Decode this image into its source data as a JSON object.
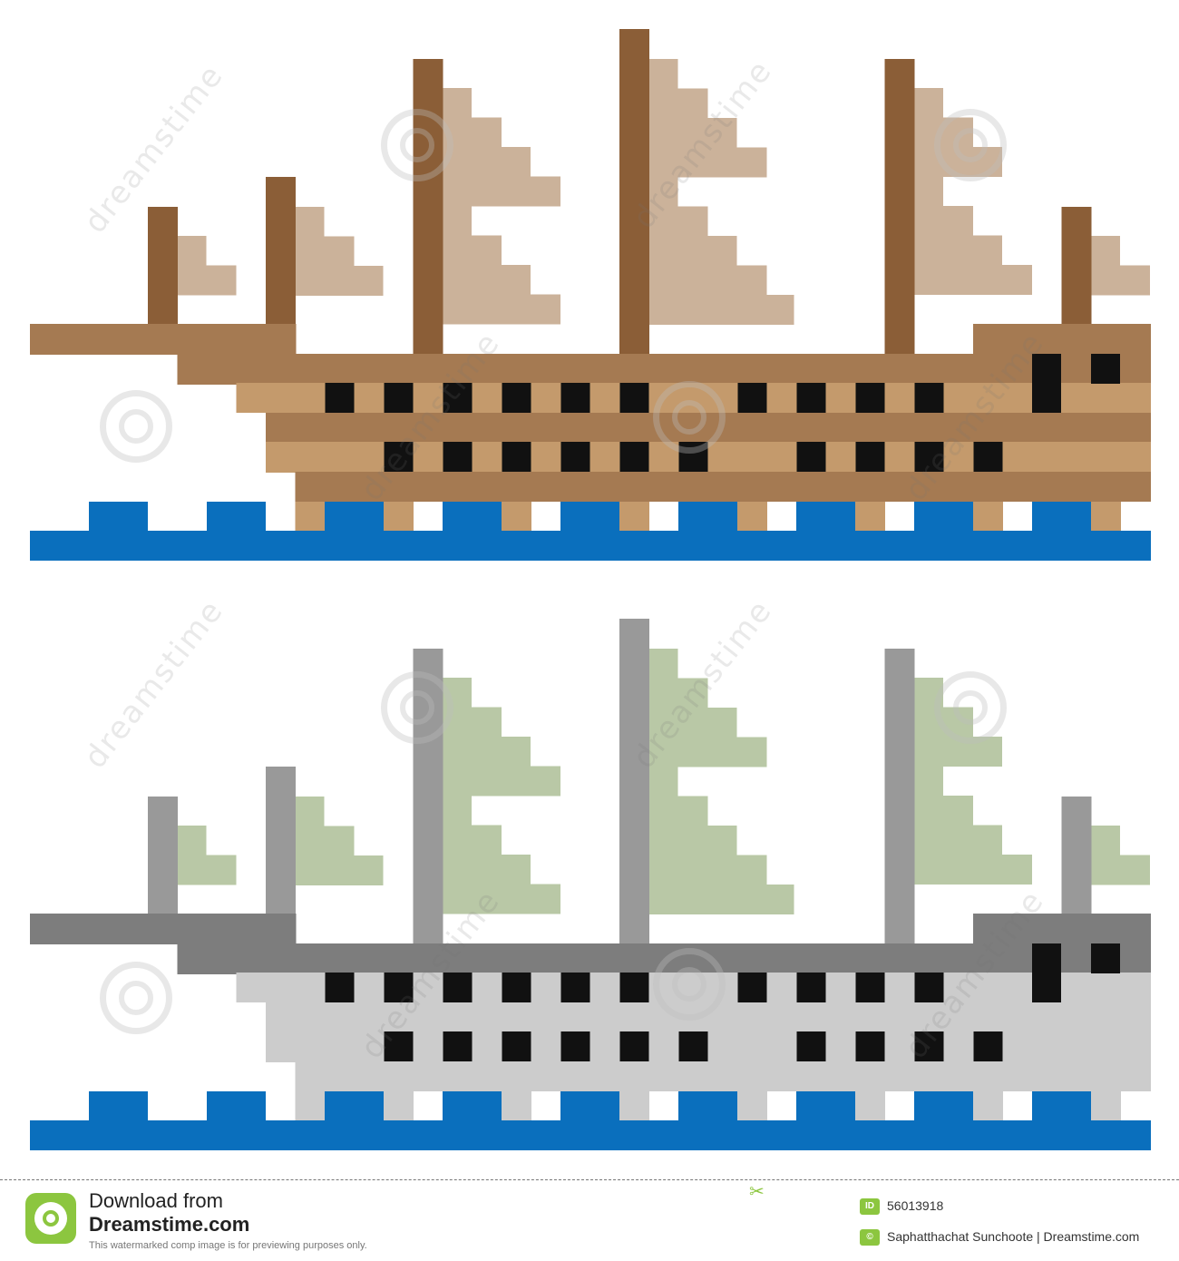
{
  "colors": {
    "wood_dark": "#8b5e37",
    "wood_mid": "#a57a52",
    "wood_light": "#c49a6c",
    "sail_tan": "#cbb29a",
    "window": "#111111",
    "water": "#0a6fbd",
    "mast_gray": "#999999",
    "hull_gray_dark": "#7d7d7d",
    "hull_gray_mid": "#999999",
    "hull_gray_light": "#cccccc",
    "sail_green": "#b9c8a6"
  },
  "watermark": {
    "text": "dreamstime"
  },
  "footer": {
    "download_line": "Download from",
    "site": "Dreamstime.com",
    "notice": "This watermarked comp image is for previewing purposes only.",
    "id_badge": "ID",
    "id_number": "56013918",
    "copyright_symbol": "©",
    "author_line": "Saphatthachat Sunchoote | Dreamstime.com"
  }
}
